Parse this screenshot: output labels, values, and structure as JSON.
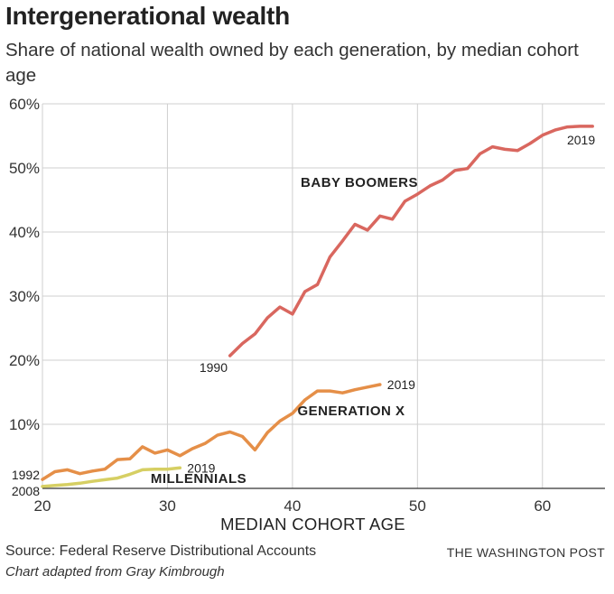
{
  "header": {
    "title": "Intergenerational wealth",
    "subtitle": "Share of national wealth owned by each generation, by median cohort age"
  },
  "footer": {
    "source": "Source: Federal Reserve Distributional Accounts",
    "credit": "Chart adapted from Gray Kimbrough",
    "publisher": "THE WASHINGTON POST"
  },
  "chart_data": {
    "type": "line",
    "title": "Intergenerational wealth",
    "subtitle": "Share of national wealth owned by each generation, by median cohort age",
    "xlabel": "MEDIAN COHORT AGE",
    "ylabel": "",
    "xlim": [
      20,
      65
    ],
    "ylim": [
      0,
      60
    ],
    "xticks": [
      20,
      30,
      40,
      50,
      60
    ],
    "xtick_labels": [
      "20",
      "30",
      "40",
      "50",
      "60"
    ],
    "yticks": [
      10,
      20,
      30,
      40,
      50,
      60
    ],
    "ytick_labels": [
      "10%",
      "20%",
      "30%",
      "40%",
      "50%",
      "60%"
    ],
    "grid": true,
    "series": [
      {
        "name": "BABY BOOMERS",
        "color": "#d9675f",
        "start_label": "1990",
        "end_label": "2019",
        "x": [
          35,
          36,
          37,
          38,
          39,
          40,
          41,
          42,
          43,
          44,
          45,
          46,
          47,
          48,
          49,
          50,
          51,
          52,
          53,
          54,
          55,
          56,
          57,
          58,
          59,
          60,
          61,
          62,
          63,
          64
        ],
        "y": [
          20.7,
          22.6,
          24.1,
          26.6,
          28.3,
          27.2,
          30.7,
          31.8,
          36.1,
          38.6,
          41.2,
          40.3,
          42.5,
          42.0,
          44.8,
          45.9,
          47.2,
          48.1,
          49.6,
          49.9,
          52.2,
          53.3,
          52.9,
          52.7,
          53.8,
          55.1,
          55.9,
          56.4,
          56.5,
          56.5
        ]
      },
      {
        "name": "GENERATION X",
        "color": "#e58f48",
        "start_label": "1992",
        "end_label": "2019",
        "x": [
          20,
          21,
          22,
          23,
          24,
          25,
          26,
          27,
          28,
          29,
          30,
          31,
          32,
          33,
          34,
          35,
          36,
          37,
          38,
          39,
          40,
          41,
          42,
          43,
          44,
          45,
          46,
          47
        ],
        "y": [
          1.4,
          2.6,
          2.9,
          2.3,
          2.7,
          3.0,
          4.5,
          4.6,
          6.5,
          5.5,
          6.0,
          5.1,
          6.2,
          7.0,
          8.3,
          8.8,
          8.1,
          6.0,
          8.7,
          10.5,
          11.7,
          13.8,
          15.2,
          15.2,
          14.9,
          15.4,
          15.8,
          16.2
        ]
      },
      {
        "name": "MILLENNIALS",
        "color": "#d6cf63",
        "start_label": "2008",
        "end_label": "2019",
        "x": [
          20,
          21,
          22,
          23,
          24,
          25,
          26,
          27,
          28,
          29,
          30,
          31
        ],
        "y": [
          0.3,
          0.45,
          0.6,
          0.8,
          1.1,
          1.35,
          1.6,
          2.2,
          2.9,
          3.0,
          3.0,
          3.2
        ]
      }
    ]
  }
}
